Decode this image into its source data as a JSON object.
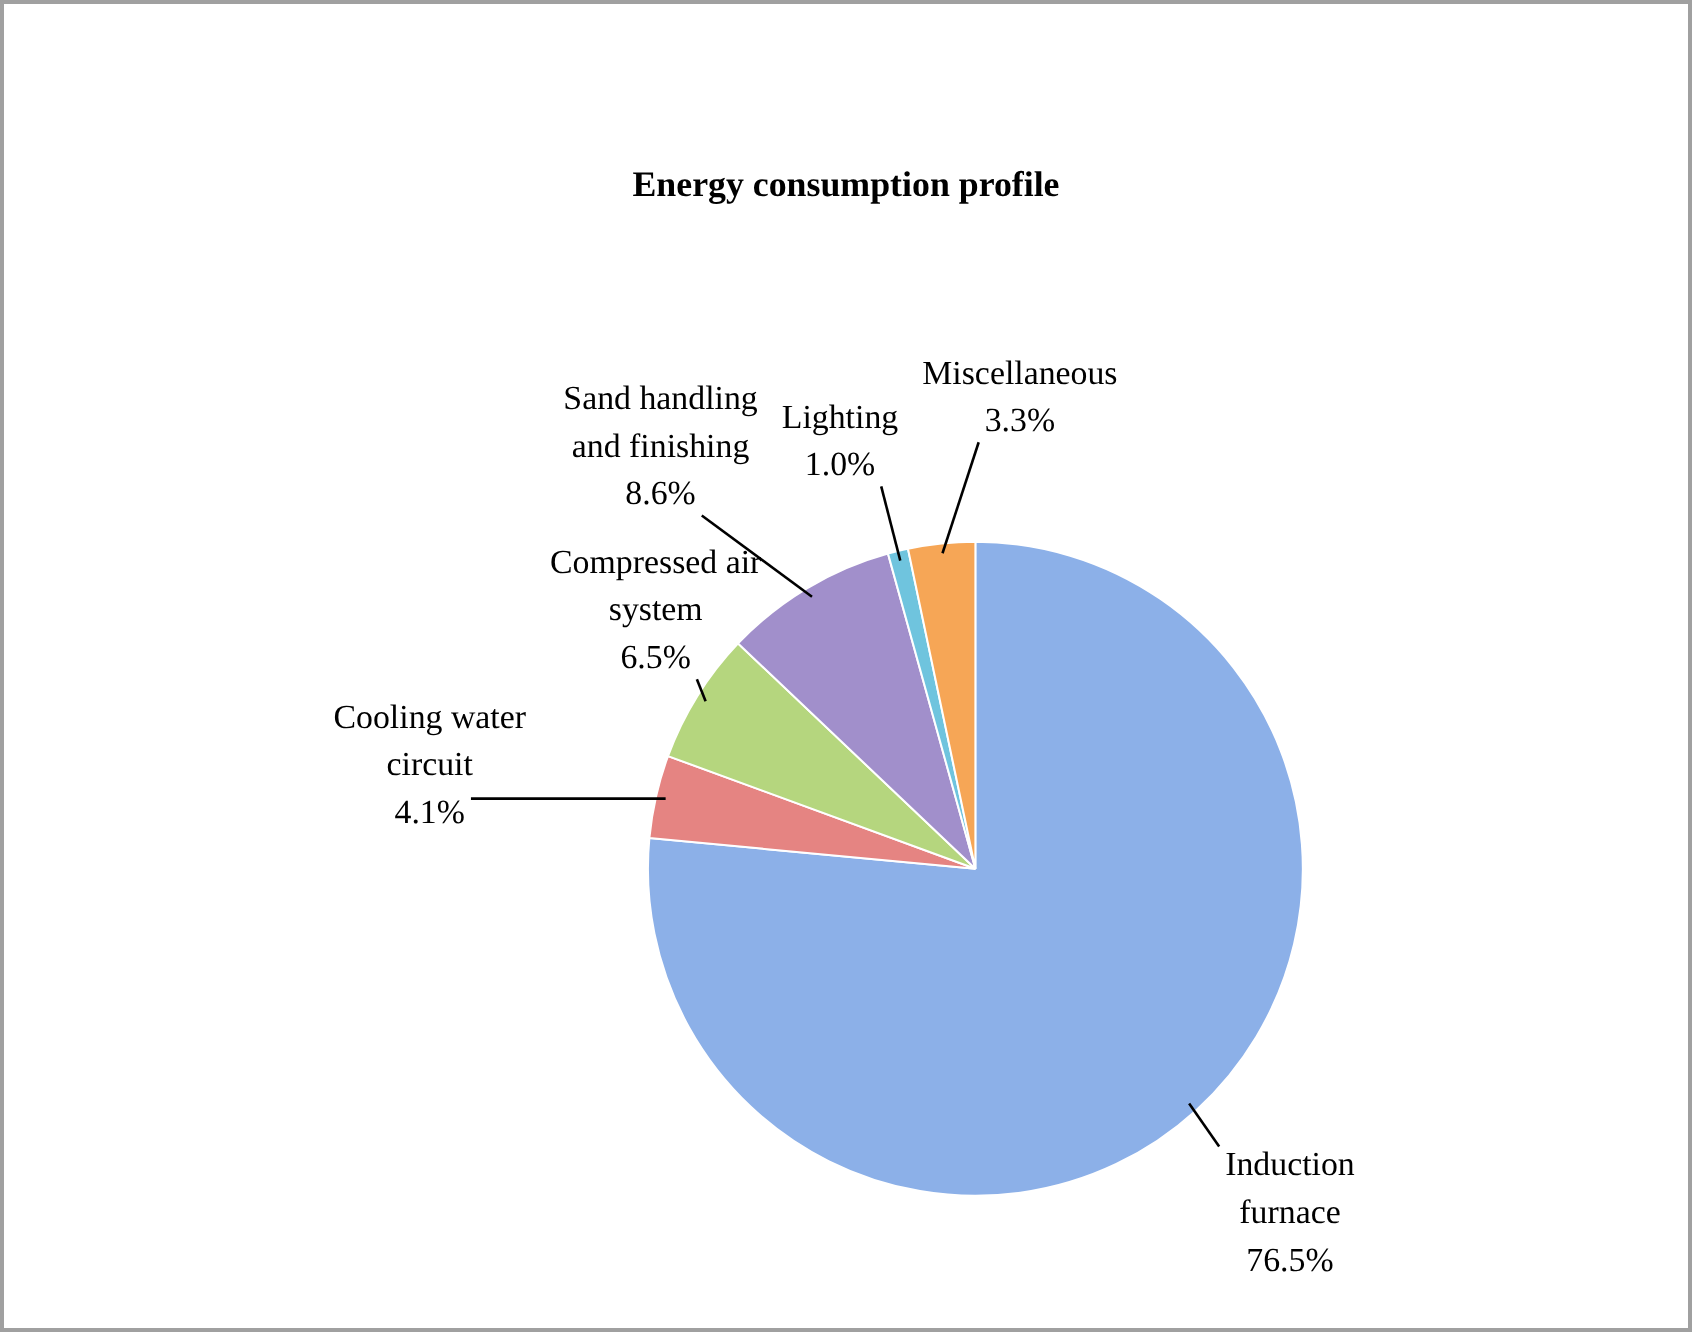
{
  "chart_data": {
    "type": "pie",
    "title": "Energy consumption profile",
    "categories": [
      "Induction furnace",
      "Cooling water circuit",
      "Compressed air system",
      "Sand handling and finishing",
      "Lighting",
      "Miscellaneous"
    ],
    "values": [
      76.5,
      4.1,
      6.5,
      8.6,
      1.0,
      3.3
    ],
    "value_labels": [
      "76.5%",
      "4.1%",
      "6.5%",
      "8.6%",
      "1.0%",
      "3.3%"
    ],
    "colors": [
      "#8cb0e8",
      "#e58482",
      "#b5d67e",
      "#a18fcb",
      "#6fc4de",
      "#f6a656"
    ],
    "legend": false
  }
}
